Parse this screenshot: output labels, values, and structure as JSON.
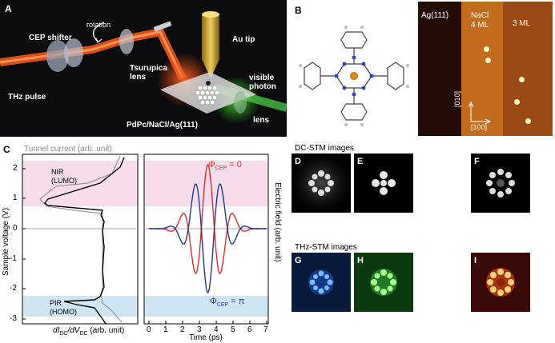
{
  "panelA": {
    "label": "A",
    "labels": {
      "cep_shifter": "CEP shifter",
      "rotation": "rotation",
      "au_tip": "Au tip",
      "tsurupica_lens": "Tsurupica\nlens",
      "visible_photon": "visible\nphoton",
      "thz_pulse": "THz pulse",
      "sample": "PdPc/NaCl/Ag(111)",
      "lens": "lens"
    }
  },
  "panelB": {
    "label": "B",
    "stm": {
      "ag": "Ag(111)",
      "nacl": "NaCl",
      "nacl_ml": "4 ML",
      "three_ml": "3 ML",
      "axis_v": "[010]",
      "axis_h": "[100]"
    }
  },
  "panelC": {
    "label": "C",
    "tunnel_current": "Tunnel current (arb. unit)",
    "nir": "NIR\n(LUMO)",
    "pir": "PIR\n(HOMO)",
    "ylabel": "Sample voltage (V)",
    "xlabel_left": "dI",
    "xlabel_left_rest": "/dV",
    "xlabel_left_tail": " (arb. unit)",
    "sub_dc": "DC",
    "xlabel_right": "Time (ps)",
    "ylabel_right": "Electric field (arb. unit)",
    "phi0": "Φ",
    "phi0_sub": "CEP",
    "phi0_val": " = 0",
    "phipi": "Φ",
    "phipi_sub": "CEP",
    "phipi_val": " = π",
    "yticks": [
      "2",
      "1",
      "0",
      "-1",
      "-2",
      "-3"
    ],
    "xticks": [
      "0",
      "1",
      "2",
      "3",
      "4",
      "5",
      "6",
      "7"
    ]
  },
  "dc_title": "DC-STM images",
  "thz_title": "THz-STM images",
  "image_labels": [
    "D",
    "E",
    "F",
    "G",
    "H",
    "I"
  ],
  "colors": {
    "lumo_band": "#f7dcec",
    "homo_band": "#cfe6f2",
    "red": "#d83030",
    "blue": "#26388c"
  },
  "chart_data": [
    {
      "type": "line",
      "title": "",
      "xlabel": "dI/dV (arb. unit)",
      "ylabel": "Sample voltage (V)",
      "ylim": [
        -3,
        2.4
      ],
      "series": [
        {
          "name": "Tunnel current (arb. unit)",
          "color": "#909090"
        },
        {
          "name": "dI/dV",
          "color": "#000000"
        }
      ]
    },
    {
      "type": "line",
      "title": "",
      "xlabel": "Time (ps)",
      "ylabel": "Electric field (arb. unit)",
      "xlim": [
        0,
        7
      ],
      "series": [
        {
          "name": "ΦCEP = 0",
          "color": "#d83030",
          "x": [
            0,
            1,
            2,
            2.5,
            3,
            3.5,
            4,
            4.5,
            5,
            5.5,
            6,
            7
          ],
          "values": [
            0,
            0.02,
            -0.25,
            0.75,
            -0.65,
            0.9,
            -0.55,
            0.55,
            -0.25,
            0.15,
            -0.05,
            0
          ]
        },
        {
          "name": "ΦCEP = π",
          "color": "#26388c",
          "x": [
            0,
            1,
            2,
            2.5,
            3,
            3.5,
            4,
            4.5,
            5,
            5.5,
            6,
            7
          ],
          "values": [
            0,
            -0.02,
            0.25,
            -0.75,
            0.65,
            -0.9,
            0.55,
            -0.55,
            0.25,
            -0.15,
            0.05,
            0
          ]
        }
      ]
    }
  ]
}
